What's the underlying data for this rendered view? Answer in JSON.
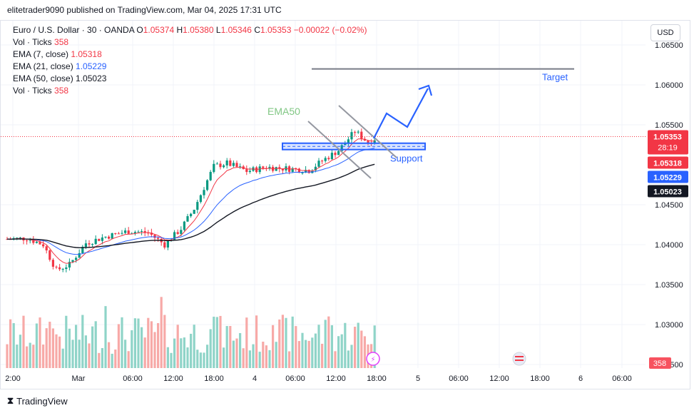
{
  "header": {
    "publisher": "elitetrader9090 published on TradingView.com, Mar 04, 2025 17:31 UTC"
  },
  "legend": {
    "symbol": "Euro / U.S. Dollar · 30 · OANDA",
    "open_label": "O",
    "open": "1.05374",
    "high_label": "H",
    "high": "1.05380",
    "low_label": "L",
    "low": "1.05346",
    "close_label": "C",
    "close": "1.05353",
    "change": "−0.00022 (−0.02%)",
    "rows": [
      {
        "label": "Vol · Ticks",
        "value": "358",
        "color": "#f23645"
      },
      {
        "label": "EMA (7, close)",
        "value": "1.05318",
        "color": "#f23645"
      },
      {
        "label": "EMA (21, close)",
        "value": "1.05229",
        "color": "#2962ff"
      },
      {
        "label": "EMA (50, close)",
        "value": "1.05023",
        "color": "#131722"
      },
      {
        "label": "Vol · Ticks",
        "value": "358",
        "color": "#f23645"
      }
    ]
  },
  "currency_button": "USD",
  "footer": {
    "brand": "TradingView"
  },
  "chart_data": {
    "type": "candlestick",
    "symbol": "EURUSD",
    "y_ticks": [
      "1.06500",
      "1.06000",
      "1.05500",
      "1.04500",
      "1.04000",
      "1.03500",
      "1.03000",
      "1.02500"
    ],
    "y_tick_values": [
      1.065,
      1.06,
      1.055,
      1.045,
      1.04,
      1.035,
      1.03,
      1.025
    ],
    "ylim": [
      1.0245,
      1.0665
    ],
    "x_ticks": [
      "2:00",
      "Mar",
      "06:00",
      "12:00",
      "18:00",
      "4",
      "06:00",
      "12:00",
      "18:00",
      "5",
      "06:00",
      "12:00",
      "18:00",
      "6",
      "06:00"
    ],
    "price_labels": [
      {
        "value": 1.05353,
        "text": "1.05353",
        "sub": "28:19",
        "color": "#f23645"
      },
      {
        "value": 1.05318,
        "text": "1.05318",
        "color": "#f23645"
      },
      {
        "value": 1.05229,
        "text": "1.05229",
        "color": "#2962ff"
      },
      {
        "value": 1.05023,
        "text": "1.05023",
        "color": "#131722"
      }
    ],
    "volume_label": "358",
    "current_price": 1.05353,
    "ema_series": [
      {
        "name": "EMA (7, close)",
        "color": "#f23645"
      },
      {
        "name": "EMA (21, close)",
        "color": "#2962ff"
      },
      {
        "name": "EMA (50, close)",
        "color": "#131722"
      }
    ],
    "annotations": {
      "ema50_text": "EMA50",
      "target_text": "Target",
      "support_text": "Support",
      "target_level": 1.062,
      "support_zone": [
        1.0519,
        1.0527
      ]
    },
    "candle_count": 112,
    "colors": {
      "up": "#089981",
      "down": "#f23645"
    }
  }
}
